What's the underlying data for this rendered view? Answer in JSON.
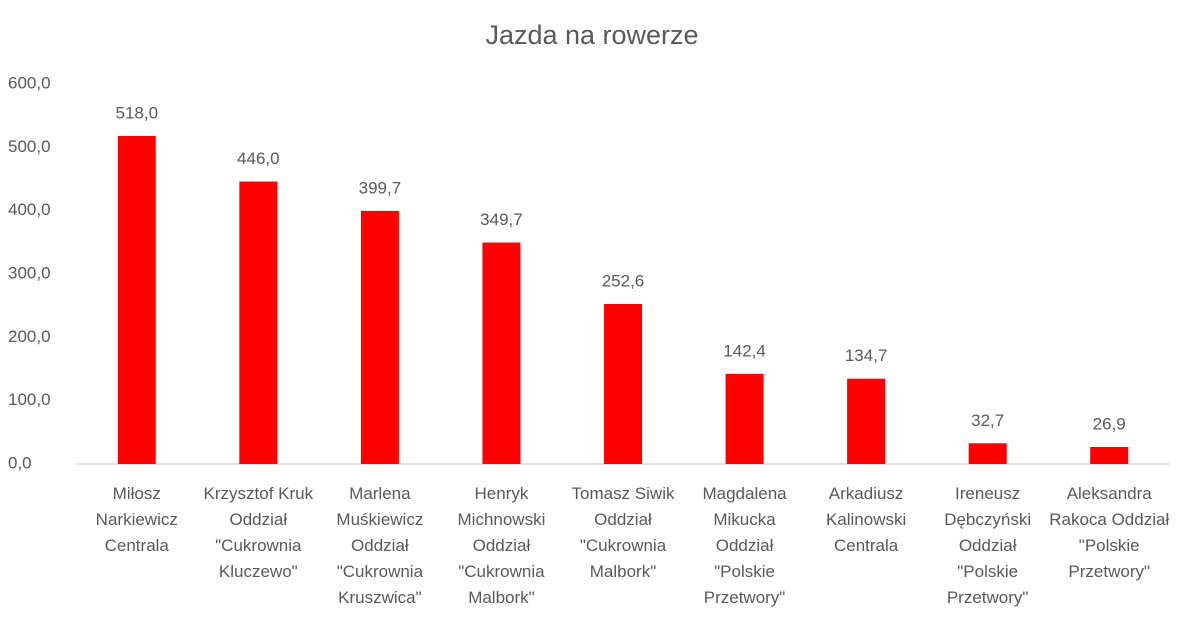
{
  "chart_data": {
    "type": "bar",
    "title": "Jazda na rowerze",
    "categories": [
      "Miłosz Narkiewicz Centrala",
      "Krzysztof Kruk Oddział \"Cukrownia Kluczewo\"",
      "Marlena Muśkiewicz Oddział \"Cukrownia Kruszwica\"",
      "Henryk Michnowski Oddział \"Cukrownia Malbork\"",
      "Tomasz Siwik Oddział \"Cukrownia Malbork\"",
      "Magdalena Mikucka Oddział \"Polskie Przetwory\"",
      "Arkadiusz Kalinowski Centrala",
      "Ireneusz Dębczyński Oddział \"Polskie Przetwory\"",
      "Aleksandra Rakoca Oddział \"Polskie Przetwory\""
    ],
    "values": [
      518.0,
      446.0,
      399.7,
      349.7,
      252.6,
      142.4,
      134.7,
      32.7,
      26.9
    ],
    "value_labels": [
      "518,0",
      "446,0",
      "399,7",
      "349,7",
      "252,6",
      "142,4",
      "134,7",
      "32,7",
      "26,9"
    ],
    "color": "#ff0000",
    "ylim": [
      0,
      600
    ],
    "yticks": [
      {
        "value": 0,
        "label": "0,0"
      },
      {
        "value": 100,
        "label": "100,0"
      },
      {
        "value": 200,
        "label": "200,0"
      },
      {
        "value": 300,
        "label": "300,0"
      },
      {
        "value": 400,
        "label": "400,0"
      },
      {
        "value": 500,
        "label": "500,0"
      },
      {
        "value": 600,
        "label": "600,0"
      }
    ],
    "grid": false
  }
}
